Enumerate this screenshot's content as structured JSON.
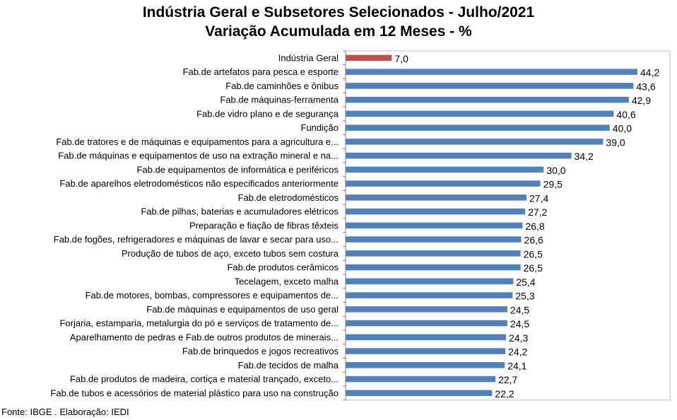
{
  "chart_data": {
    "type": "bar",
    "orientation": "horizontal",
    "title": "Indústria Geral e Subsetores Selecionados - Julho/2021",
    "subtitle": "Variação Acumulada em 12 Meses - %",
    "categories": [
      "Indústria Geral",
      "Fab.de artefatos para pesca e esporte",
      "Fab.de caminhões e ônibus",
      "Fab.de máquinas-ferramenta",
      "Fab.de vidro plano e de segurança",
      "Fundição",
      "Fab.de tratores e de máquinas e equipamentos para a agricultura e...",
      "Fab.de máquinas e equipamentos de uso na extração mineral e na...",
      "Fab.de equipamentos de informática e periféricos",
      "Fab.de aparelhos eletrodomésticos não especificados anteriormente",
      "Fab.de eletrodomésticos",
      "Fab.de pilhas, baterias e acumuladores elétricos",
      "Preparação e fiação de fibras têxteis",
      "Fab.de fogões, refrigeradores e máquinas de lavar e secar para uso...",
      "Produção de tubos de aço, exceto tubos sem costura",
      "Fab.de produtos cerâmicos",
      "Tecelagem, exceto malha",
      "Fab.de motores, bombas, compressores e equipamentos de...",
      "Fab.de máquinas e equipamentos de uso geral",
      "Forjaria, estamparia, metalurgia do pó e serviços de tratamento de...",
      "Aparelhamento de pedras e Fab.de outros produtos de minerais...",
      "Fab.de brinquedos e jogos recreativos",
      "Fab.de tecidos de malha",
      "Fab.de produtos de madeira, cortiça e material trançado, exceto...",
      "Fab.de tubos e acessórios de material plástico para uso na construção"
    ],
    "values": [
      7.0,
      44.2,
      43.6,
      42.9,
      40.6,
      40.0,
      39.0,
      34.2,
      30.0,
      29.5,
      27.4,
      27.2,
      26.8,
      26.6,
      26.5,
      26.5,
      25.4,
      25.3,
      24.5,
      24.5,
      24.3,
      24.2,
      24.1,
      22.7,
      22.2
    ],
    "value_labels": [
      "7,0",
      "44,2",
      "43,6",
      "42,9",
      "40,6",
      "40,0",
      "39,0",
      "34,2",
      "30,0",
      "29,5",
      "27,4",
      "27,2",
      "26,8",
      "26,6",
      "26,5",
      "26,5",
      "25,4",
      "25,3",
      "24,5",
      "24,5",
      "24,3",
      "24,2",
      "24,1",
      "22,7",
      "22,2"
    ],
    "highlight_index": 0,
    "xlim": [
      0,
      46
    ],
    "grid": false,
    "legend": "none",
    "colors": {
      "bar": "#4f81bd",
      "highlight": "#c0504d",
      "axis": "#808080"
    }
  },
  "source": "Fonte: IBGE . Elaboração: IEDI"
}
